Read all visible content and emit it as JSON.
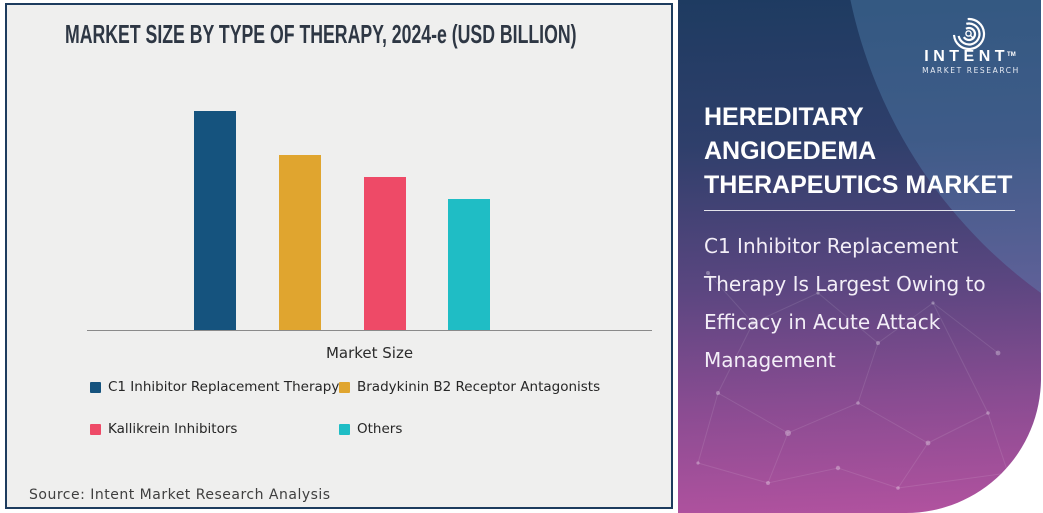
{
  "page": {
    "source_note": "Source: Intent Market Research Analysis"
  },
  "chart_data": {
    "type": "bar",
    "title": "MARKET SIZE BY TYPE OF THERAPY, 2024-e (USD BILLION)",
    "unit": "USD Billion",
    "xlabel": "Market Size",
    "ylabel": "",
    "categories": [
      "C1 Inhibitor Replacement Therapy",
      "Bradykinin B2 Receptor Antagonists",
      "Kallikrein Inhibitors",
      "Others"
    ],
    "values_relative_to_max": [
      1.0,
      0.8,
      0.7,
      0.6
    ],
    "value_labels_shown": false,
    "y_axis_shown": false,
    "grid": false,
    "legend_position": "bottom",
    "bar_colors": [
      "#15537E",
      "#E0A52F",
      "#EE4A67",
      "#1FBDC5"
    ]
  },
  "side_panel": {
    "title": "HEREDITARY ANGIOEDEMA THERAPEUTICS MARKET",
    "title_lines": [
      "HEREDITARY",
      "ANGIOEDEMA",
      "THERAPEUTICS MARKET"
    ],
    "description": "C1 Inhibitor Replacement Therapy Is Largest Owing to Efficacy in Acute Attack Management",
    "gradient_top": "#1E3B61",
    "gradient_bottom": "#B2529F"
  },
  "logo": {
    "brand": "INTENT",
    "trademark": "TM",
    "tagline": "MARKET RESEARCH",
    "icon": "sonar-arcs-magnifier-icon"
  },
  "colors": {
    "chart_background": "#EFEFEE",
    "frame_border": "#1D3C5E",
    "title_text": "#2E3744",
    "axis_line": "#8A8A8A",
    "legend_text": "#262626",
    "source_text": "#3F3F3F"
  }
}
